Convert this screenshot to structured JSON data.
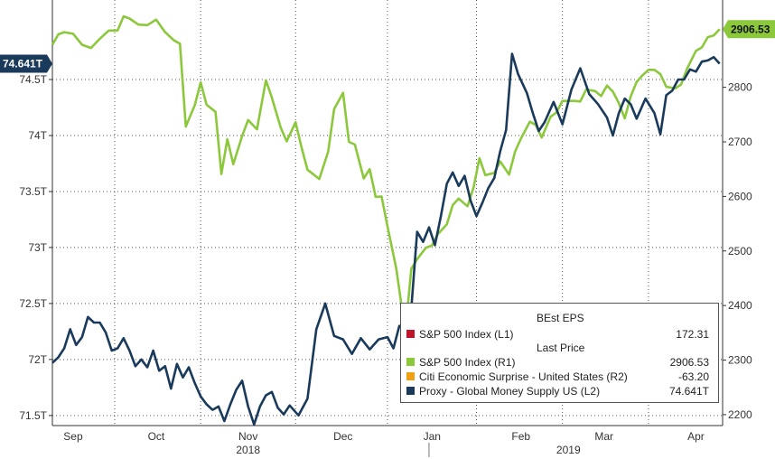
{
  "chart_data": {
    "type": "line",
    "left_axis": {
      "ticks": [
        "71.5T",
        "72T",
        "72.5T",
        "73T",
        "73.5T",
        "74T",
        "74.5T"
      ],
      "tick_values": [
        71.5,
        72,
        72.5,
        73,
        73.5,
        74,
        74.5
      ],
      "ylim": [
        71.41,
        75.21
      ]
    },
    "right_axis": {
      "ticks": [
        "2200",
        "2300",
        "2400",
        "2500",
        "2600",
        "2700",
        "2800"
      ],
      "tick_values": [
        2200,
        2300,
        2400,
        2500,
        2600,
        2700,
        2800
      ],
      "ylim": [
        2180,
        2960
      ]
    },
    "x_axis": {
      "range": [
        "2018-08-27",
        "2019-04-10"
      ],
      "months": [
        {
          "label": "Sep",
          "date": "2018-09-03"
        },
        {
          "label": "Oct",
          "date": "2018-10-01"
        },
        {
          "label": "Nov",
          "date": "2018-11-01"
        },
        {
          "label": "Dec",
          "date": "2018-12-03"
        },
        {
          "label": "Jan",
          "date": "2019-01-02"
        },
        {
          "label": "Feb",
          "date": "2019-02-01"
        },
        {
          "label": "Mar",
          "date": "2019-03-01"
        },
        {
          "label": "Apr",
          "date": "2019-04-01"
        }
      ],
      "years": [
        {
          "label": "2018",
          "date": "2018-11-01"
        },
        {
          "label": "2019",
          "date": "2019-02-17"
        }
      ],
      "year_divider": "2019-01-01"
    },
    "grid": true,
    "series": [
      {
        "name": "S&P 500 Index (R1)",
        "axis": "right",
        "color": "#8cc83c",
        "points": [
          [
            "2018-08-27",
            2878
          ],
          [
            "2018-08-29",
            2897
          ],
          [
            "2018-08-31",
            2901
          ],
          [
            "2018-09-03",
            2898
          ],
          [
            "2018-09-06",
            2878
          ],
          [
            "2018-09-09",
            2872
          ],
          [
            "2018-09-12",
            2889
          ],
          [
            "2018-09-15",
            2904
          ],
          [
            "2018-09-18",
            2904
          ],
          [
            "2018-09-20",
            2930
          ],
          [
            "2018-09-22",
            2926
          ],
          [
            "2018-09-25",
            2915
          ],
          [
            "2018-09-28",
            2914
          ],
          [
            "2018-10-01",
            2924
          ],
          [
            "2018-10-04",
            2901
          ],
          [
            "2018-10-07",
            2886
          ],
          [
            "2018-10-09",
            2880
          ],
          [
            "2018-10-11",
            2728
          ],
          [
            "2018-10-14",
            2767
          ],
          [
            "2018-10-16",
            2809
          ],
          [
            "2018-10-18",
            2768
          ],
          [
            "2018-10-21",
            2755
          ],
          [
            "2018-10-23",
            2641
          ],
          [
            "2018-10-25",
            2705
          ],
          [
            "2018-10-27",
            2659
          ],
          [
            "2018-10-30",
            2711
          ],
          [
            "2018-11-01",
            2740
          ],
          [
            "2018-11-04",
            2723
          ],
          [
            "2018-11-07",
            2813
          ],
          [
            "2018-11-09",
            2781
          ],
          [
            "2018-11-12",
            2726
          ],
          [
            "2018-11-14",
            2701
          ],
          [
            "2018-11-17",
            2736
          ],
          [
            "2018-11-19",
            2690
          ],
          [
            "2018-11-21",
            2649
          ],
          [
            "2018-11-25",
            2632
          ],
          [
            "2018-11-28",
            2682
          ],
          [
            "2018-11-30",
            2760
          ],
          [
            "2018-12-03",
            2790
          ],
          [
            "2018-12-05",
            2700
          ],
          [
            "2018-12-07",
            2695
          ],
          [
            "2018-12-10",
            2633
          ],
          [
            "2018-12-12",
            2650
          ],
          [
            "2018-12-14",
            2599
          ],
          [
            "2018-12-16",
            2600
          ],
          [
            "2018-12-18",
            2545
          ],
          [
            "2018-12-21",
            2467
          ],
          [
            "2018-12-24",
            2351
          ],
          [
            "2018-12-26",
            2467
          ],
          [
            "2018-12-28",
            2485
          ],
          [
            "2018-12-31",
            2506
          ],
          [
            "2019-01-02",
            2510
          ],
          [
            "2019-01-04",
            2531
          ],
          [
            "2019-01-07",
            2549
          ],
          [
            "2019-01-09",
            2584
          ],
          [
            "2019-01-11",
            2596
          ],
          [
            "2019-01-14",
            2582
          ],
          [
            "2019-01-16",
            2616
          ],
          [
            "2019-01-18",
            2670
          ],
          [
            "2019-01-20",
            2639
          ],
          [
            "2019-01-23",
            2643
          ],
          [
            "2019-01-25",
            2664
          ],
          [
            "2019-01-28",
            2640
          ],
          [
            "2019-01-30",
            2682
          ],
          [
            "2019-02-01",
            2706
          ],
          [
            "2019-02-04",
            2737
          ],
          [
            "2019-02-06",
            2731
          ],
          [
            "2019-02-08",
            2708
          ],
          [
            "2019-02-11",
            2746
          ],
          [
            "2019-02-13",
            2754
          ],
          [
            "2019-02-15",
            2775
          ],
          [
            "2019-02-19",
            2775
          ],
          [
            "2019-02-21",
            2774
          ],
          [
            "2019-02-23",
            2796
          ],
          [
            "2019-02-26",
            2793
          ],
          [
            "2019-02-28",
            2784
          ],
          [
            "2019-03-02",
            2803
          ],
          [
            "2019-03-04",
            2792
          ],
          [
            "2019-03-06",
            2771
          ],
          [
            "2019-03-08",
            2743
          ],
          [
            "2019-03-10",
            2783
          ],
          [
            "2019-03-12",
            2810
          ],
          [
            "2019-03-14",
            2822
          ],
          [
            "2019-03-16",
            2832
          ],
          [
            "2019-03-18",
            2832
          ],
          [
            "2019-03-20",
            2824
          ],
          [
            "2019-03-22",
            2801
          ],
          [
            "2019-03-25",
            2798
          ],
          [
            "2019-03-27",
            2805
          ],
          [
            "2019-03-29",
            2834
          ],
          [
            "2019-04-01",
            2867
          ],
          [
            "2019-04-03",
            2873
          ],
          [
            "2019-04-05",
            2892
          ],
          [
            "2019-04-07",
            2895
          ],
          [
            "2019-04-09",
            2906.53
          ]
        ]
      },
      {
        "name": "Proxy - Global Money Supply US (L2)",
        "axis": "left",
        "color": "#1a3a5c",
        "points": [
          [
            "2018-08-27",
            71.97
          ],
          [
            "2018-08-29",
            72.02
          ],
          [
            "2018-08-31",
            72.1
          ],
          [
            "2018-09-02",
            72.27
          ],
          [
            "2018-09-04",
            72.13
          ],
          [
            "2018-09-06",
            72.2
          ],
          [
            "2018-09-08",
            72.38
          ],
          [
            "2018-09-10",
            72.33
          ],
          [
            "2018-09-12",
            72.33
          ],
          [
            "2018-09-14",
            72.24
          ],
          [
            "2018-09-16",
            72.08
          ],
          [
            "2018-09-18",
            72.1
          ],
          [
            "2018-09-20",
            72.19
          ],
          [
            "2018-09-22",
            72.08
          ],
          [
            "2018-09-24",
            71.94
          ],
          [
            "2018-09-26",
            72.0
          ],
          [
            "2018-09-28",
            71.93
          ],
          [
            "2018-09-30",
            72.08
          ],
          [
            "2018-10-02",
            71.9
          ],
          [
            "2018-10-04",
            71.94
          ],
          [
            "2018-10-06",
            71.74
          ],
          [
            "2018-10-08",
            71.96
          ],
          [
            "2018-10-10",
            71.84
          ],
          [
            "2018-10-12",
            71.93
          ],
          [
            "2018-10-14",
            71.79
          ],
          [
            "2018-10-16",
            71.67
          ],
          [
            "2018-10-18",
            71.6
          ],
          [
            "2018-10-20",
            71.55
          ],
          [
            "2018-10-22",
            71.58
          ],
          [
            "2018-10-24",
            71.45
          ],
          [
            "2018-10-26",
            71.6
          ],
          [
            "2018-10-28",
            71.73
          ],
          [
            "2018-10-30",
            71.81
          ],
          [
            "2018-11-01",
            71.58
          ],
          [
            "2018-11-03",
            71.42
          ],
          [
            "2018-11-05",
            71.58
          ],
          [
            "2018-11-07",
            71.68
          ],
          [
            "2018-11-09",
            71.71
          ],
          [
            "2018-11-11",
            71.57
          ],
          [
            "2018-11-13",
            71.51
          ],
          [
            "2018-11-15",
            71.59
          ],
          [
            "2018-11-18",
            71.5
          ],
          [
            "2018-11-21",
            71.65
          ],
          [
            "2018-11-24",
            72.27
          ],
          [
            "2018-11-27",
            72.5
          ],
          [
            "2018-11-30",
            72.21
          ],
          [
            "2018-12-03",
            72.18
          ],
          [
            "2018-12-06",
            72.05
          ],
          [
            "2018-12-09",
            72.19
          ],
          [
            "2018-12-12",
            72.09
          ],
          [
            "2018-12-15",
            72.18
          ],
          [
            "2018-12-18",
            72.2
          ],
          [
            "2018-12-20",
            72.1
          ],
          [
            "2018-12-22",
            72.3
          ],
          [
            "2018-12-24",
            72.29
          ],
          [
            "2018-12-26",
            72.45
          ],
          [
            "2018-12-28",
            73.14
          ],
          [
            "2018-12-30",
            73.05
          ],
          [
            "2019-01-01",
            73.18
          ],
          [
            "2019-01-03",
            73.02
          ],
          [
            "2019-01-05",
            73.28
          ],
          [
            "2019-01-07",
            73.57
          ],
          [
            "2019-01-09",
            73.67
          ],
          [
            "2019-01-11",
            73.55
          ],
          [
            "2019-01-13",
            73.64
          ],
          [
            "2019-01-15",
            73.42
          ],
          [
            "2019-01-17",
            73.28
          ],
          [
            "2019-01-19",
            73.4
          ],
          [
            "2019-01-21",
            73.53
          ],
          [
            "2019-01-23",
            73.62
          ],
          [
            "2019-01-25",
            73.86
          ],
          [
            "2019-01-27",
            74.05
          ],
          [
            "2019-01-29",
            74.73
          ],
          [
            "2019-01-31",
            74.55
          ],
          [
            "2019-02-03",
            74.38
          ],
          [
            "2019-02-05",
            74.2
          ],
          [
            "2019-02-07",
            74.04
          ],
          [
            "2019-02-09",
            74.12
          ],
          [
            "2019-02-12",
            74.3
          ],
          [
            "2019-02-15",
            74.1
          ],
          [
            "2019-02-18",
            74.41
          ],
          [
            "2019-02-21",
            74.6
          ],
          [
            "2019-02-24",
            74.37
          ],
          [
            "2019-02-27",
            74.28
          ],
          [
            "2019-03-02",
            74.16
          ],
          [
            "2019-03-04",
            74.0
          ],
          [
            "2019-03-06",
            74.2
          ],
          [
            "2019-03-08",
            74.33
          ],
          [
            "2019-03-10",
            74.28
          ],
          [
            "2019-03-12",
            74.15
          ],
          [
            "2019-03-15",
            74.33
          ],
          [
            "2019-03-18",
            74.2
          ],
          [
            "2019-03-20",
            74.01
          ],
          [
            "2019-03-22",
            74.36
          ],
          [
            "2019-03-24",
            74.4
          ],
          [
            "2019-03-26",
            74.5
          ],
          [
            "2019-03-28",
            74.5
          ],
          [
            "2019-03-30",
            74.59
          ],
          [
            "2019-04-01",
            74.57
          ],
          [
            "2019-04-03",
            74.66
          ],
          [
            "2019-04-05",
            74.67
          ],
          [
            "2019-04-07",
            74.7
          ],
          [
            "2019-04-09",
            74.641
          ]
        ]
      }
    ],
    "last_value_flags": {
      "left": {
        "text": "74.641T",
        "value": 74.641,
        "color": "#1a3a5c"
      },
      "right": {
        "text": "2906.53",
        "value": 2906.53,
        "color": "#8cc83c"
      }
    }
  },
  "legend": {
    "header1": "BEst EPS",
    "header2": "Last Price",
    "items": [
      {
        "label": "S&P 500 Index  (L1)",
        "value": "172.31",
        "color": "#c0152a"
      },
      {
        "label": "S&P 500 Index  (R1)",
        "value": "2906.53",
        "color": "#8cc83c"
      },
      {
        "label": "Citi Economic Surprise - United States  (R2)",
        "value": "-63.20",
        "color": "#f0a010"
      },
      {
        "label": "Proxy - Global Money Supply US  (L2)",
        "value": "74.641T",
        "color": "#1a3a5c"
      }
    ]
  }
}
